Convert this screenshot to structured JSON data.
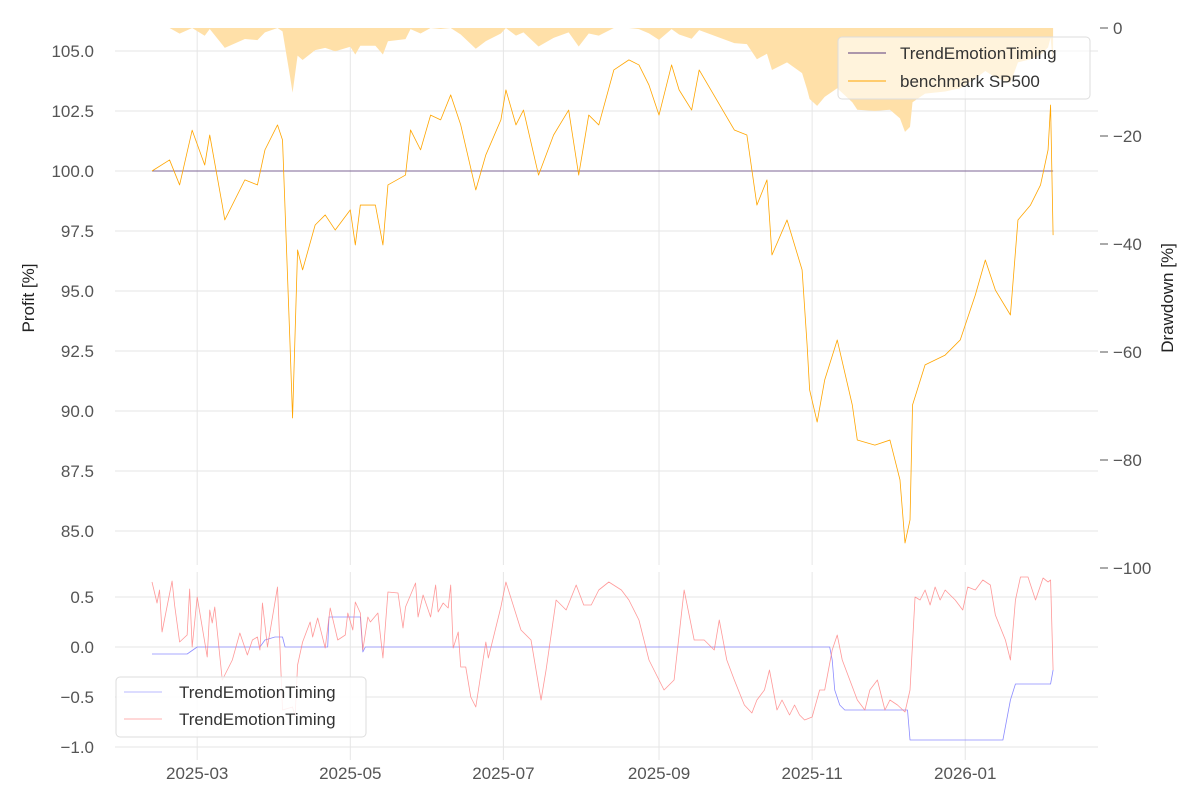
{
  "chart_data": [
    {
      "type": "area+line",
      "panel": "top",
      "x_origin_date": "2025-02-11",
      "x_unit": "days since origin",
      "ylabel": "Profit [%]",
      "ylabel_right": "Drawdown [%]",
      "ylim": [
        84.0,
        106.0
      ],
      "ylim_right": [
        -100,
        0
      ],
      "yticks": [
        "85.0",
        "87.5",
        "90.0",
        "92.5",
        "95.0",
        "97.5",
        "100.0",
        "102.5",
        "105.0"
      ],
      "yticks_values": [
        85,
        87.5,
        90,
        92.5,
        95,
        97.5,
        100,
        102.5,
        105
      ],
      "yticks_right": [
        "0",
        "−20",
        "−40",
        "−60",
        "−80",
        "−100"
      ],
      "yticks_right_values": [
        0,
        -20,
        -40,
        -60,
        -80,
        -100
      ],
      "grid": true,
      "legend": {
        "placement": "top-right",
        "entries": [
          "TrendEmotionTiming",
          "benchmark SP500"
        ]
      },
      "series": [
        {
          "name": "TrendEmotionTiming",
          "color": "#5a3a7a",
          "x": [
            0,
            359
          ],
          "y": [
            100,
            100
          ]
        },
        {
          "name": "benchmark SP500",
          "color": "#ffa500",
          "x": [
            0,
            7,
            11,
            16,
            21,
            23,
            28,
            29,
            37,
            42,
            45,
            50,
            52,
            55,
            56,
            58,
            60,
            65,
            69,
            73,
            79,
            81,
            83,
            89,
            92,
            94,
            101,
            103,
            107,
            111,
            115,
            119,
            123,
            129,
            133,
            139,
            141,
            145,
            148,
            154,
            160,
            166,
            170,
            174,
            178,
            184,
            190,
            194,
            198,
            202,
            207,
            210,
            215,
            218,
            225,
            232,
            237,
            241,
            245,
            247,
            253,
            259,
            261,
            262,
            265,
            268,
            273,
            279,
            281,
            288,
            294,
            298,
            300,
            302,
            303,
            308,
            316,
            322,
            328,
            332,
            336,
            342,
            345,
            350,
            354,
            357,
            358,
            359
          ],
          "y": [
            100.0,
            100.46,
            99.42,
            101.7,
            100.25,
            101.5,
            98.58,
            97.96,
            99.63,
            99.42,
            100.88,
            101.92,
            101.29,
            92.75,
            89.71,
            96.71,
            95.88,
            97.75,
            98.17,
            97.54,
            98.38,
            96.92,
            98.58,
            98.58,
            96.92,
            99.42,
            99.83,
            101.71,
            100.88,
            102.33,
            102.13,
            103.17,
            101.92,
            99.21,
            100.67,
            102.13,
            103.38,
            101.92,
            102.54,
            99.83,
            101.5,
            102.54,
            99.83,
            102.33,
            101.92,
            104.21,
            104.63,
            104.42,
            103.58,
            102.33,
            104.42,
            103.38,
            102.54,
            104.21,
            102.96,
            101.71,
            101.5,
            98.58,
            99.63,
            96.5,
            97.96,
            95.88,
            92.75,
            90.88,
            89.54,
            91.29,
            92.96,
            90.25,
            88.79,
            88.58,
            88.79,
            87.13,
            84.5,
            85.46,
            90.25,
            91.92,
            92.33,
            92.96,
            94.83,
            96.29,
            95.04,
            94.0,
            97.96,
            98.58,
            99.42,
            100.88,
            102.75,
            97.33
          ]
        },
        {
          "name": "benchmark drawdown",
          "color": "#ffe0a8",
          "derived_from": "benchmark SP500"
        }
      ]
    },
    {
      "type": "line",
      "panel": "bottom",
      "x_origin_date": "2025-02-11",
      "ylim": [
        -1.0,
        0.85
      ],
      "yticks": [
        "0.5",
        "0.0",
        "−0.5",
        "−1.0"
      ],
      "yticks_values": [
        0.5,
        0,
        -0.5,
        -1.0
      ],
      "xticks": [
        "2025-03",
        "2025-05",
        "2025-07",
        "2025-09",
        "2025-11",
        "2026-01"
      ],
      "xticks_values": [
        18,
        79,
        140,
        202,
        263,
        324
      ],
      "grid": true,
      "legend": {
        "placement": "bottom-left",
        "entries": [
          "TrendEmotionTiming",
          "TrendEmotionTiming"
        ]
      },
      "series": [
        {
          "name": "TrendEmotionTiming",
          "color": "#8080ff",
          "x": [
            0,
            14,
            18,
            43,
            45,
            49,
            52,
            53,
            70,
            70.5,
            83,
            84,
            85,
            270,
            271,
            272,
            274,
            276,
            301,
            302,
            339,
            342,
            344,
            358,
            359
          ],
          "y": [
            -0.07,
            -0.07,
            0,
            0,
            0.07,
            0.1,
            0.1,
            0,
            0,
            0.3,
            0.3,
            -0.05,
            0,
            0,
            -0.13,
            -0.43,
            -0.58,
            -0.63,
            -0.63,
            -0.93,
            -0.93,
            -0.53,
            -0.37,
            -0.37,
            -0.23
          ]
        },
        {
          "name": "TrendEmotionTiming",
          "color": "#ff8080",
          "x": [
            0,
            2,
            3,
            4,
            8,
            9,
            11,
            14,
            15,
            16,
            18,
            22,
            23,
            24,
            25,
            28,
            32,
            35,
            38,
            40,
            42,
            43,
            44,
            46,
            50,
            52,
            56,
            57,
            58,
            60,
            63,
            64,
            66,
            69,
            71,
            74,
            77,
            78,
            80,
            81,
            83,
            84,
            86,
            87,
            90,
            92,
            94,
            98,
            100,
            101,
            105,
            106,
            108,
            111,
            113,
            114,
            116,
            118,
            119,
            120,
            122,
            123,
            125,
            127,
            129,
            133,
            134,
            139,
            141,
            147,
            151,
            155,
            157,
            161,
            165,
            169,
            172,
            175,
            178,
            182,
            187,
            190,
            194,
            198,
            202,
            204,
            208,
            212,
            216,
            220,
            224,
            226,
            229,
            232,
            236,
            239,
            241,
            244,
            246,
            249,
            251,
            254,
            256,
            258,
            260,
            263,
            266,
            268,
            271,
            273,
            275,
            278,
            281,
            284,
            286,
            289,
            292,
            294,
            297,
            300,
            302,
            304,
            306,
            308,
            310,
            312,
            314,
            316,
            320,
            323,
            325,
            328,
            331,
            334,
            336,
            340,
            342,
            344,
            346,
            349,
            352,
            355,
            357,
            358,
            359
          ],
          "y": [
            0.65,
            0.44,
            0.57,
            0.15,
            0.66,
            0.42,
            0.05,
            0.12,
            0.58,
            0,
            0.5,
            -0.1,
            0.37,
            0.24,
            0.4,
            -0.33,
            -0.13,
            0.14,
            -0.08,
            0.07,
            0.1,
            -0.03,
            0.44,
            0,
            0.6,
            -0.63,
            -0.6,
            -0.7,
            -0.18,
            0.05,
            0.25,
            0.1,
            0.29,
            -0.01,
            0.39,
            0.07,
            0.12,
            0.34,
            0.17,
            0.45,
            0.34,
            -0.03,
            0.3,
            0.25,
            0.34,
            -0.11,
            0.55,
            0.54,
            0.19,
            0.4,
            0.64,
            0.3,
            0.52,
            0.3,
            0.62,
            0.35,
            0.44,
            0.39,
            0.62,
            -0.01,
            0.15,
            -0.2,
            -0.2,
            -0.5,
            -0.6,
            0.05,
            -0.11,
            0.4,
            0.65,
            0.17,
            0.07,
            -0.53,
            -0.23,
            0.47,
            0.37,
            0.62,
            0.42,
            0.42,
            0.57,
            0.65,
            0.57,
            0.47,
            0.27,
            -0.13,
            -0.33,
            -0.43,
            -0.33,
            0.57,
            0.07,
            0.07,
            -0.03,
            0.27,
            -0.13,
            -0.33,
            -0.58,
            -0.66,
            -0.53,
            -0.43,
            -0.23,
            -0.63,
            -0.53,
            -0.68,
            -0.58,
            -0.68,
            -0.73,
            -0.7,
            -0.43,
            -0.43,
            -0.03,
            0.12,
            -0.13,
            -0.33,
            -0.53,
            -0.63,
            -0.43,
            -0.33,
            -0.63,
            -0.53,
            -0.58,
            -0.65,
            -0.43,
            0.5,
            0.47,
            0.57,
            0.42,
            0.6,
            0.47,
            0.57,
            0.47,
            0.37,
            0.6,
            0.57,
            0.67,
            0.62,
            0.32,
            0.07,
            -0.13,
            0.47,
            0.7,
            0.7,
            0.47,
            0.69,
            0.65,
            0.67,
            -0.23
          ]
        }
      ]
    }
  ]
}
